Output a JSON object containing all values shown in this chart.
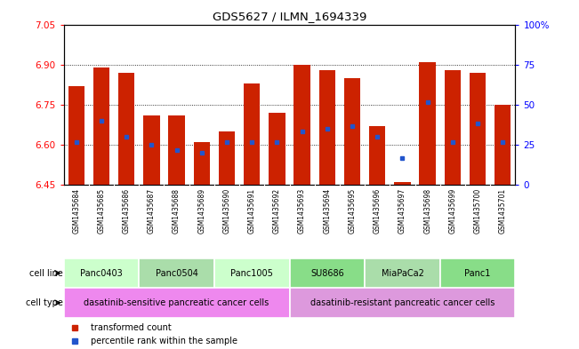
{
  "title": "GDS5627 / ILMN_1694339",
  "samples": [
    "GSM1435684",
    "GSM1435685",
    "GSM1435686",
    "GSM1435687",
    "GSM1435688",
    "GSM1435689",
    "GSM1435690",
    "GSM1435691",
    "GSM1435692",
    "GSM1435693",
    "GSM1435694",
    "GSM1435695",
    "GSM1435696",
    "GSM1435697",
    "GSM1435698",
    "GSM1435699",
    "GSM1435700",
    "GSM1435701"
  ],
  "bar_values": [
    6.82,
    6.89,
    6.87,
    6.71,
    6.71,
    6.61,
    6.65,
    6.83,
    6.72,
    6.9,
    6.88,
    6.85,
    6.67,
    6.46,
    6.91,
    6.88,
    6.87,
    6.75
  ],
  "percentile_values": [
    6.61,
    6.69,
    6.63,
    6.6,
    6.58,
    6.57,
    6.61,
    6.61,
    6.61,
    6.65,
    6.66,
    6.67,
    6.63,
    6.55,
    6.76,
    6.61,
    6.68,
    6.61
  ],
  "ylim_left": [
    6.45,
    7.05
  ],
  "ylim_right": [
    0,
    100
  ],
  "yticks_left": [
    6.45,
    6.6,
    6.75,
    6.9,
    7.05
  ],
  "yticks_right": [
    0,
    25,
    50,
    75,
    100
  ],
  "bar_color": "#cc2200",
  "dot_color": "#2255cc",
  "grid_values": [
    6.6,
    6.75,
    6.9
  ],
  "cell_lines": [
    {
      "label": "Panc0403",
      "start": 0,
      "end": 3,
      "color": "#ccffcc"
    },
    {
      "label": "Panc0504",
      "start": 3,
      "end": 6,
      "color": "#aaddaa"
    },
    {
      "label": "Panc1005",
      "start": 6,
      "end": 9,
      "color": "#ccffcc"
    },
    {
      "label": "SU8686",
      "start": 9,
      "end": 12,
      "color": "#88dd88"
    },
    {
      "label": "MiaPaCa2",
      "start": 12,
      "end": 15,
      "color": "#aaddaa"
    },
    {
      "label": "Panc1",
      "start": 15,
      "end": 18,
      "color": "#88dd88"
    }
  ],
  "cell_types": [
    {
      "label": "dasatinib-sensitive pancreatic cancer cells",
      "start": 0,
      "end": 9,
      "color": "#ee88ee"
    },
    {
      "label": "dasatinib-resistant pancreatic cancer cells",
      "start": 9,
      "end": 18,
      "color": "#dd99dd"
    }
  ],
  "legend_items": [
    {
      "label": "transformed count",
      "color": "#cc2200"
    },
    {
      "label": "percentile rank within the sample",
      "color": "#2255cc"
    }
  ],
  "bg_color": "#ffffff",
  "tick_area_color": "#c8c8c8"
}
